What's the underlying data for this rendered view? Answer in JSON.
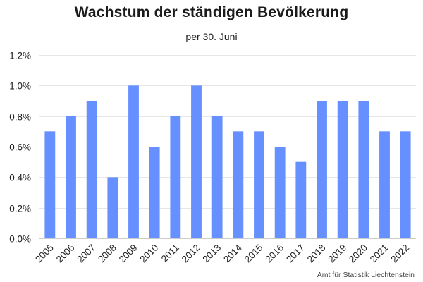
{
  "header": {
    "title": "Wachstum der ständigen Bevölkerung",
    "subtitle": "per 30. Juni"
  },
  "footer": {
    "source": "Amt für Statistik Liechtenstein"
  },
  "colors": {
    "bar": "#6690ff",
    "grid": "#e6e6e6",
    "axis": "#cccccc"
  },
  "chart_data": {
    "type": "bar",
    "title": "Wachstum der ständigen Bevölkerung",
    "subtitle": "per 30. Juni",
    "xlabel": "",
    "ylabel": "",
    "ylim": [
      0,
      1.2
    ],
    "yticks": [
      0.0,
      0.2,
      0.4,
      0.6,
      0.8,
      1.0,
      1.2
    ],
    "ytick_labels": [
      "0.0%",
      "0.2%",
      "0.4%",
      "0.6%",
      "0.8%",
      "1.0%",
      "1.2%"
    ],
    "grid": true,
    "legend": "none",
    "categories": [
      "2005",
      "2006",
      "2007",
      "2008",
      "2009",
      "2010",
      "2011",
      "2012",
      "2013",
      "2014",
      "2015",
      "2016",
      "2017",
      "2018",
      "2019",
      "2020",
      "2021",
      "2022"
    ],
    "values": [
      0.7,
      0.8,
      0.9,
      0.4,
      1.0,
      0.6,
      0.8,
      1.0,
      0.8,
      0.7,
      0.7,
      0.6,
      0.5,
      0.9,
      0.9,
      0.9,
      0.7,
      0.7
    ],
    "unit": "%"
  }
}
